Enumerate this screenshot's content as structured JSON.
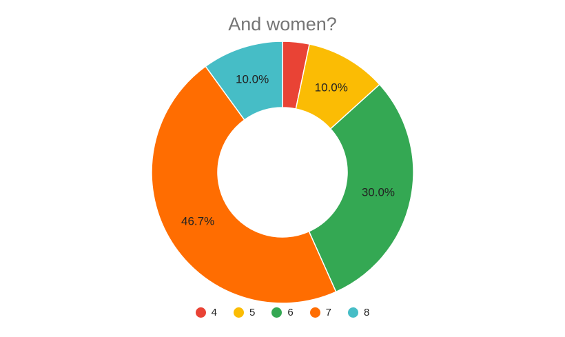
{
  "chart_data": {
    "type": "pie",
    "title": "And women?",
    "donut": true,
    "categories": [
      "4",
      "5",
      "6",
      "7",
      "8"
    ],
    "values": [
      3.3,
      10.0,
      30.0,
      46.7,
      10.0
    ],
    "labels": [
      "",
      "10.0%",
      "30.0%",
      "46.7%",
      "10.0%"
    ],
    "colors": [
      "#e94335",
      "#fbbc04",
      "#34a853",
      "#ff6d01",
      "#46bdc6"
    ],
    "legend_position": "bottom"
  }
}
